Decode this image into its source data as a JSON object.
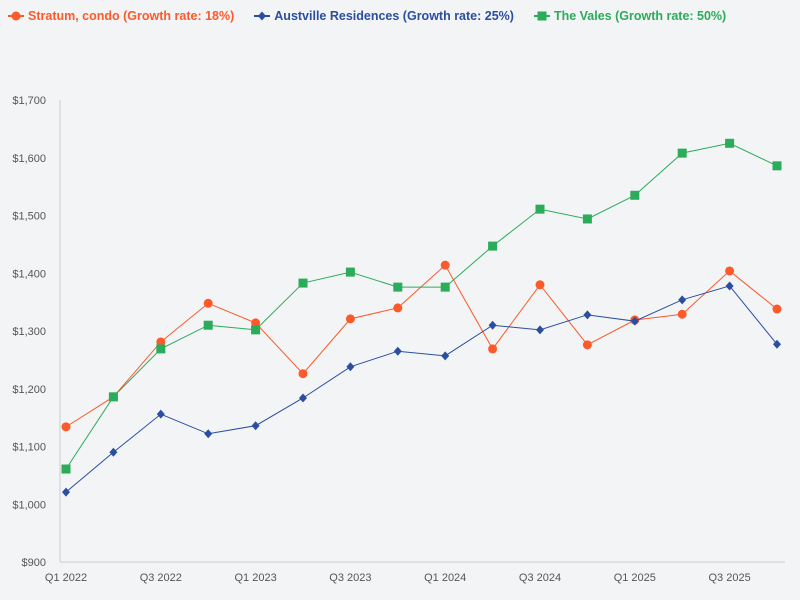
{
  "chart_data": {
    "type": "line",
    "title": "",
    "xlabel": "",
    "ylabel": "",
    "categories": [
      "Q1 2022",
      "Q2 2022",
      "Q3 2022",
      "Q4 2022",
      "Q1 2023",
      "Q2 2023",
      "Q3 2023",
      "Q4 2023",
      "Q1 2024",
      "Q2 2024",
      "Q3 2024",
      "Q4 2024",
      "Q1 2025",
      "Q2 2025",
      "Q3 2025",
      "Q4 2025"
    ],
    "x_tick_labels": [
      "Q1 2022",
      "Q3 2022",
      "Q1 2023",
      "Q3 2023",
      "Q1 2024",
      "Q3 2024",
      "Q1 2025",
      "Q3 2025"
    ],
    "ylim": [
      900,
      1700
    ],
    "y_ticks": [
      "$900",
      "$1,000",
      "$1,100",
      "$1,200",
      "$1,300",
      "$1,400",
      "$1,500",
      "$1,600",
      "$1,700"
    ],
    "grid": false,
    "legend_position": "top-left",
    "series": [
      {
        "name": "Stratum, condo (Growth rate: 18%)",
        "color": "#fc5a2a",
        "marker": "circle",
        "values": [
          1134,
          1186,
          1281,
          1348,
          1314,
          1226,
          1321,
          1340,
          1414,
          1269,
          1380,
          1276,
          1319,
          1329,
          1404,
          1338
        ]
      },
      {
        "name": "Austville Residences (Growth rate: 25%)",
        "color": "#2a4fa0",
        "marker": "diamond",
        "values": [
          1021,
          1090,
          1156,
          1122,
          1136,
          1184,
          1238,
          1265,
          1257,
          1310,
          1302,
          1328,
          1317,
          1354,
          1378,
          1277
        ]
      },
      {
        "name": "The Vales (Growth rate: 50%)",
        "color": "#2bac5a",
        "marker": "square",
        "values": [
          1061,
          1186,
          1269,
          1310,
          1302,
          1383,
          1402,
          1376,
          1376,
          1447,
          1511,
          1494,
          1535,
          1608,
          1625,
          1586
        ]
      }
    ]
  }
}
